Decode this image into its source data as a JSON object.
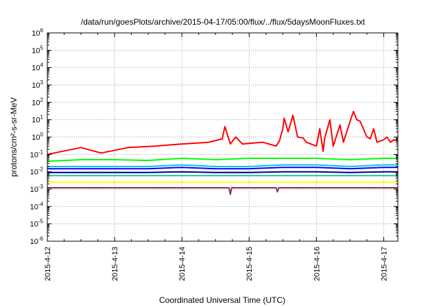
{
  "chart_data": {
    "type": "line",
    "title": "/data/run/goesPlots/archive/2015-04-17/05:00/flux/../flux/5daysMoonFluxes.txt",
    "xlabel": "Coordinated Universal Time (UTC)",
    "ylabel": "protons/cm²-s-sr-MeV",
    "y_scale": "log",
    "ylim": [
      1e-06,
      1000000.0
    ],
    "xlim": [
      0,
      5.21
    ],
    "x_origin_date": "2015-4-12",
    "x_tick_values": [
      0,
      1,
      2,
      3,
      4,
      5
    ],
    "x_tick_labels": [
      "2015-4-12",
      "2015-4-13",
      "2015-4-14",
      "2015-4-15",
      "2015-4-16",
      "2015-4-17"
    ],
    "y_tick_exponents": [
      -6,
      -5,
      -4,
      -3,
      -2,
      -1,
      0,
      1,
      2,
      3,
      4,
      5,
      6
    ],
    "grid": true,
    "legend": "none",
    "series": [
      {
        "color": "#ff0000",
        "x": [
          0,
          0.5,
          0.8,
          1.2,
          1.6,
          2.0,
          2.4,
          2.6,
          2.64,
          2.72,
          2.8,
          2.9,
          3.2,
          3.4,
          3.45,
          3.5,
          3.52,
          3.58,
          3.65,
          3.72,
          3.8,
          3.85,
          4.0,
          4.05,
          4.1,
          4.12,
          4.2,
          4.25,
          4.35,
          4.4,
          4.5,
          4.55,
          4.6,
          4.65,
          4.75,
          4.8,
          4.85,
          4.9,
          5.0,
          5.05,
          5.1,
          5.15,
          5.21
        ],
        "y": [
          0.1,
          0.25,
          0.12,
          0.25,
          0.3,
          0.4,
          0.5,
          0.8,
          4,
          0.4,
          1,
          0.4,
          0.5,
          0.3,
          0.6,
          3,
          12,
          2,
          18,
          1,
          0.9,
          0.5,
          0.3,
          3,
          0.15,
          0.8,
          10,
          0.3,
          5,
          0.5,
          8,
          30,
          10,
          8,
          1,
          0.8,
          3,
          0.5,
          0.7,
          1,
          0.5,
          0.7,
          0.6
        ]
      },
      {
        "color": "#00ff00",
        "x": [
          0,
          0.5,
          1,
          1.5,
          2,
          2.5,
          3,
          3.5,
          4,
          4.5,
          5,
          5.21
        ],
        "y": [
          0.04,
          0.05,
          0.05,
          0.045,
          0.06,
          0.05,
          0.06,
          0.06,
          0.06,
          0.05,
          0.06,
          0.06
        ]
      },
      {
        "color": "#00bfff",
        "x": [
          0,
          0.5,
          1,
          1.5,
          2,
          2.5,
          3,
          3.5,
          4,
          4.5,
          5,
          5.21
        ],
        "y": [
          0.02,
          0.02,
          0.02,
          0.02,
          0.025,
          0.02,
          0.02,
          0.025,
          0.025,
          0.02,
          0.025,
          0.025
        ]
      },
      {
        "color": "#0000ff",
        "x": [
          0,
          0.5,
          1,
          1.5,
          2,
          2.5,
          3,
          3.5,
          4,
          4.5,
          5,
          5.21
        ],
        "y": [
          0.015,
          0.015,
          0.015,
          0.015,
          0.018,
          0.015,
          0.015,
          0.018,
          0.018,
          0.015,
          0.018,
          0.018
        ]
      },
      {
        "color": "#000090",
        "x": [
          0,
          0.5,
          1,
          1.5,
          2,
          2.5,
          3,
          3.5,
          4,
          4.5,
          5,
          5.21
        ],
        "y": [
          0.009,
          0.009,
          0.009,
          0.009,
          0.01,
          0.009,
          0.009,
          0.01,
          0.01,
          0.009,
          0.01,
          0.01
        ]
      },
      {
        "color": "#20c0a0",
        "x": [
          0,
          0.5,
          1,
          1.5,
          2,
          2.5,
          3,
          3.5,
          4,
          4.5,
          5,
          5.21
        ],
        "y": [
          0.006,
          0.006,
          0.006,
          0.006,
          0.006,
          0.006,
          0.006,
          0.006,
          0.006,
          0.006,
          0.006,
          0.006
        ]
      },
      {
        "color": "#ffff00",
        "x": [
          0,
          0.5,
          1,
          1.5,
          2,
          2.5,
          3,
          3.5,
          4,
          4.5,
          5,
          5.21
        ],
        "y": [
          0.0025,
          0.0025,
          0.0025,
          0.0025,
          0.0025,
          0.0025,
          0.0025,
          0.0025,
          0.0025,
          0.0025,
          0.0025,
          0.0025
        ]
      },
      {
        "color": "#8b2b6b",
        "x": [
          0,
          0.5,
          1,
          1.5,
          2,
          2.5,
          2.7,
          2.72,
          2.74,
          3,
          3.4,
          3.42,
          3.44,
          4,
          4.5,
          5,
          5.21
        ],
        "y": [
          0.0012,
          0.0012,
          0.0012,
          0.0012,
          0.0012,
          0.0012,
          0.0012,
          0.0005,
          0.0012,
          0.0012,
          0.0012,
          0.0007,
          0.0012,
          0.0012,
          0.0012,
          0.0012,
          0.0012
        ]
      }
    ]
  }
}
